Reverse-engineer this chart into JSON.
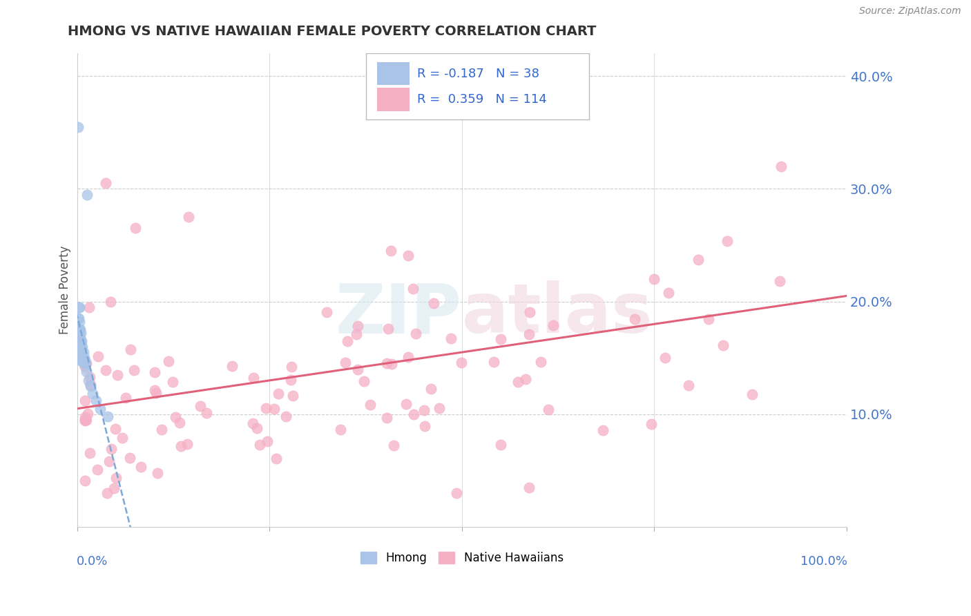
{
  "title": "HMONG VS NATIVE HAWAIIAN FEMALE POVERTY CORRELATION CHART",
  "source": "Source: ZipAtlas.com",
  "ylabel": "Female Poverty",
  "hmong_R": -0.187,
  "hmong_N": 38,
  "native_R": 0.359,
  "native_N": 114,
  "hmong_color": "#aac4e8",
  "native_color": "#f5afc5",
  "trend_hmong_color": "#7aa8d8",
  "trend_native_color": "#e0607a",
  "legend_R_color": "#3366cc",
  "background_color": "#ffffff",
  "xmin": 0.0,
  "xmax": 1.0,
  "ymin": 0.0,
  "ymax": 0.42,
  "yticks": [
    0.1,
    0.2,
    0.3,
    0.4
  ],
  "ytick_labels": [
    "10.0%",
    "20.0%",
    "30.0%",
    "40.0%"
  ],
  "watermark": "ZIPatlas"
}
